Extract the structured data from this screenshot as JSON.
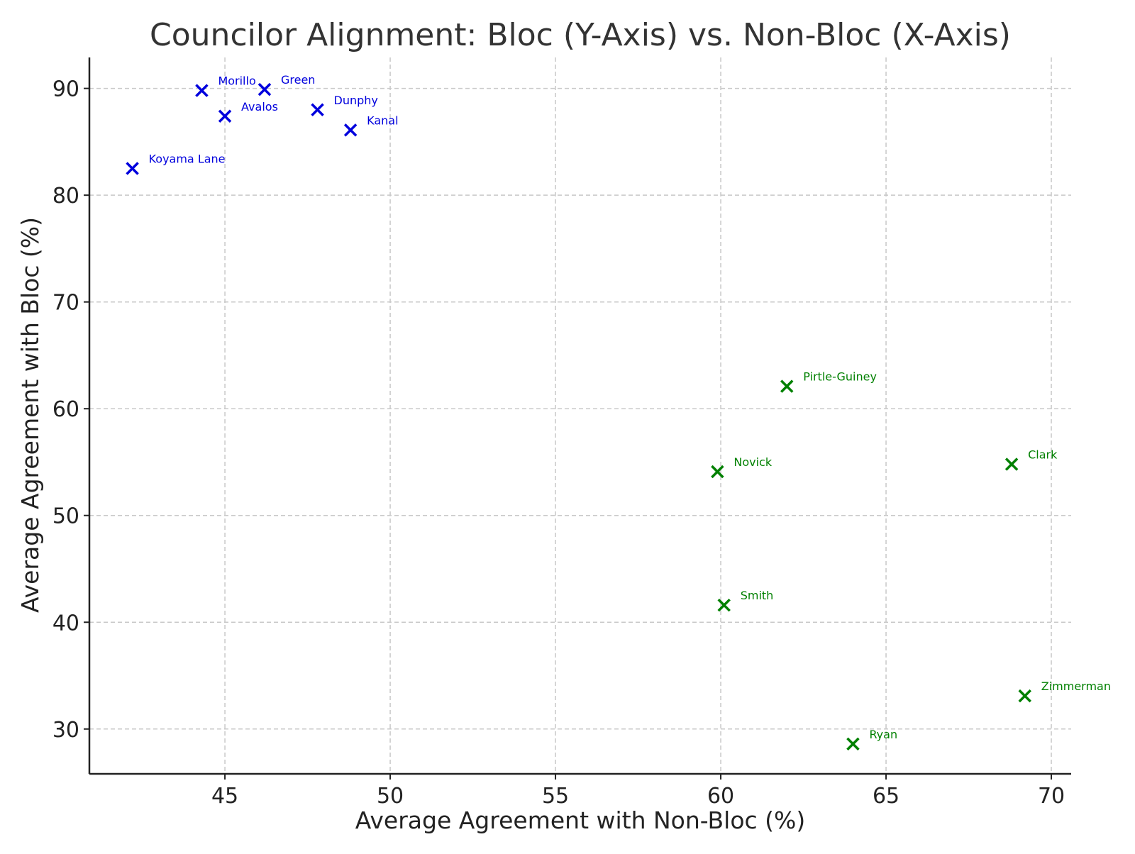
{
  "chart_data": {
    "type": "scatter",
    "title": "Councilor Alignment: Bloc (Y-Axis) vs. Non-Bloc (X-Axis)",
    "xlabel": "Average Agreement with Non-Bloc (%)",
    "ylabel": "Average Agreement with Bloc (%)",
    "xlim": [
      40.9,
      70.6
    ],
    "ylim": [
      25.8,
      92.9
    ],
    "xticks": [
      45,
      50,
      55,
      60,
      65,
      70
    ],
    "yticks": [
      30,
      40,
      50,
      60,
      70,
      80,
      90
    ],
    "grid": true,
    "marker": "x",
    "series": [
      {
        "color": "#0000dd",
        "points": [
          {
            "label": "Morillo",
            "x": 44.3,
            "y": 89.8
          },
          {
            "label": "Green",
            "x": 46.2,
            "y": 89.9
          },
          {
            "label": "Avalos",
            "x": 45.0,
            "y": 87.4
          },
          {
            "label": "Dunphy",
            "x": 47.8,
            "y": 88.0
          },
          {
            "label": "Kanal",
            "x": 48.8,
            "y": 86.1
          },
          {
            "label": "Koyama Lane",
            "x": 42.2,
            "y": 82.5
          }
        ]
      },
      {
        "color": "#008000",
        "points": [
          {
            "label": "Pirtle-Guiney",
            "x": 62.0,
            "y": 62.1
          },
          {
            "label": "Novick",
            "x": 59.9,
            "y": 54.1
          },
          {
            "label": "Clark",
            "x": 68.8,
            "y": 54.8
          },
          {
            "label": "Smith",
            "x": 60.1,
            "y": 41.6
          },
          {
            "label": "Zimmerman",
            "x": 69.2,
            "y": 33.1
          },
          {
            "label": "Ryan",
            "x": 64.0,
            "y": 28.6
          }
        ]
      }
    ]
  }
}
